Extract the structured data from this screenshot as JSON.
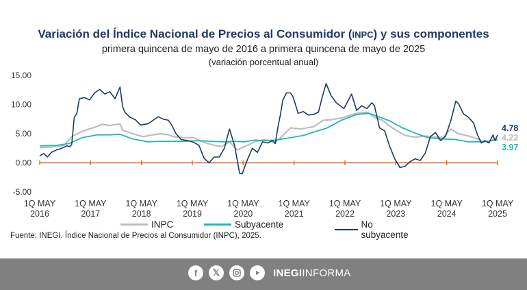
{
  "header": {
    "title_part1": "Variación del Índice Nacional de Precios al Consumidor (",
    "title_inpc": "INPC",
    "title_part2": ") y sus componentes",
    "subtitle": "primera quincena de mayo de 2016 a primera quincena de mayo de 2025",
    "subtitle2": "(variación porcentual anual)"
  },
  "source": "Fuente: INEGI. Índice Nacional de Precios al Consumidor (INPC), 2025.",
  "footer": {
    "icons": [
      "facebook-icon",
      "x-icon",
      "instagram-icon",
      "youtube-icon"
    ],
    "brand_bold": "INEGI",
    "brand_rest": "INFORMA"
  },
  "chart_data": {
    "type": "line",
    "ylim": [
      -5,
      15
    ],
    "yticks": [
      "15.00",
      "10.00",
      "5.00",
      "0.00",
      "-5.00"
    ],
    "ytick_values": [
      15,
      10,
      5,
      0,
      -5
    ],
    "x_labels": [
      [
        "1Q MAY",
        "2016"
      ],
      [
        "1Q MAY",
        "2017"
      ],
      [
        "1Q MAY",
        "2018"
      ],
      [
        "1Q MAY",
        "2019"
      ],
      [
        "1Q MAY",
        "2020"
      ],
      [
        "1Q MAY",
        "2021"
      ],
      [
        "1Q MAY",
        "2022"
      ],
      [
        "1Q MAY",
        "2023"
      ],
      [
        "1Q MAY",
        "2024"
      ],
      [
        "1Q MAY",
        "2025"
      ]
    ],
    "xlim": [
      2016.37,
      2025.37
    ],
    "zero_line_color": "#e0662a",
    "series": [
      {
        "name": "INPC",
        "color": "#bdbdbd",
        "width": 2.2,
        "points": [
          [
            2016.37,
            2.6
          ],
          [
            2016.6,
            2.7
          ],
          [
            2016.85,
            3.0
          ],
          [
            2017.0,
            4.5
          ],
          [
            2017.2,
            5.4
          ],
          [
            2017.45,
            6.1
          ],
          [
            2017.6,
            6.6
          ],
          [
            2017.75,
            6.4
          ],
          [
            2017.95,
            6.7
          ],
          [
            2018.0,
            5.6
          ],
          [
            2018.2,
            5.0
          ],
          [
            2018.4,
            4.5
          ],
          [
            2018.6,
            4.8
          ],
          [
            2018.75,
            5.0
          ],
          [
            2018.9,
            4.8
          ],
          [
            2019.0,
            4.5
          ],
          [
            2019.2,
            4.3
          ],
          [
            2019.4,
            4.3
          ],
          [
            2019.6,
            3.5
          ],
          [
            2019.8,
            3.0
          ],
          [
            2019.95,
            2.8
          ],
          [
            2020.1,
            3.6
          ],
          [
            2020.25,
            2.2
          ],
          [
            2020.4,
            2.8
          ],
          [
            2020.6,
            3.6
          ],
          [
            2020.8,
            4.0
          ],
          [
            2021.0,
            3.5
          ],
          [
            2021.15,
            4.7
          ],
          [
            2021.3,
            6.0
          ],
          [
            2021.5,
            5.8
          ],
          [
            2021.75,
            6.2
          ],
          [
            2021.95,
            7.3
          ],
          [
            2022.1,
            7.4
          ],
          [
            2022.3,
            7.7
          ],
          [
            2022.6,
            8.5
          ],
          [
            2022.8,
            8.7
          ],
          [
            2022.95,
            7.8
          ],
          [
            2023.1,
            7.3
          ],
          [
            2023.3,
            6.0
          ],
          [
            2023.55,
            4.7
          ],
          [
            2023.75,
            4.4
          ],
          [
            2023.95,
            4.6
          ],
          [
            2024.1,
            4.4
          ],
          [
            2024.3,
            4.4
          ],
          [
            2024.45,
            5.8
          ],
          [
            2024.6,
            5.0
          ],
          [
            2024.8,
            4.6
          ],
          [
            2024.95,
            4.2
          ],
          [
            2025.1,
            3.6
          ],
          [
            2025.25,
            3.8
          ],
          [
            2025.37,
            4.22
          ]
        ]
      },
      {
        "name": "Subyacente",
        "color": "#1fb8b4",
        "width": 1.8,
        "points": [
          [
            2016.37,
            2.9
          ],
          [
            2016.7,
            3.0
          ],
          [
            2016.95,
            3.3
          ],
          [
            2017.2,
            4.3
          ],
          [
            2017.5,
            4.8
          ],
          [
            2017.75,
            4.8
          ],
          [
            2017.95,
            4.9
          ],
          [
            2018.2,
            4.1
          ],
          [
            2018.5,
            3.6
          ],
          [
            2018.75,
            3.7
          ],
          [
            2018.95,
            3.7
          ],
          [
            2019.2,
            3.7
          ],
          [
            2019.5,
            3.8
          ],
          [
            2019.75,
            3.7
          ],
          [
            2019.95,
            3.6
          ],
          [
            2020.2,
            3.7
          ],
          [
            2020.4,
            3.6
          ],
          [
            2020.6,
            3.9
          ],
          [
            2020.8,
            3.8
          ],
          [
            2021.0,
            3.9
          ],
          [
            2021.3,
            4.3
          ],
          [
            2021.55,
            4.7
          ],
          [
            2021.8,
            5.4
          ],
          [
            2022.0,
            5.9
          ],
          [
            2022.3,
            7.3
          ],
          [
            2022.6,
            8.3
          ],
          [
            2022.85,
            8.5
          ],
          [
            2023.0,
            8.0
          ],
          [
            2023.25,
            7.2
          ],
          [
            2023.5,
            6.0
          ],
          [
            2023.75,
            5.1
          ],
          [
            2024.0,
            4.3
          ],
          [
            2024.3,
            4.1
          ],
          [
            2024.55,
            4.0
          ],
          [
            2024.8,
            3.6
          ],
          [
            2025.1,
            3.6
          ],
          [
            2025.37,
            3.97
          ]
        ]
      },
      {
        "name": "No subyacente",
        "color": "#1a3a5f",
        "width": 1.6,
        "points": [
          [
            2016.37,
            1.2
          ],
          [
            2016.45,
            1.6
          ],
          [
            2016.52,
            1.0
          ],
          [
            2016.6,
            1.8
          ],
          [
            2016.7,
            2.2
          ],
          [
            2016.8,
            2.5
          ],
          [
            2016.9,
            2.9
          ],
          [
            2016.97,
            2.8
          ],
          [
            2017.0,
            3.2
          ],
          [
            2017.05,
            7.8
          ],
          [
            2017.1,
            8.5
          ],
          [
            2017.15,
            11.0
          ],
          [
            2017.25,
            11.2
          ],
          [
            2017.35,
            10.8
          ],
          [
            2017.45,
            12.0
          ],
          [
            2017.55,
            12.6
          ],
          [
            2017.65,
            11.8
          ],
          [
            2017.75,
            12.2
          ],
          [
            2017.85,
            11.0
          ],
          [
            2017.95,
            13.0
          ],
          [
            2018.0,
            9.6
          ],
          [
            2018.05,
            8.6
          ],
          [
            2018.15,
            7.8
          ],
          [
            2018.25,
            7.4
          ],
          [
            2018.35,
            6.5
          ],
          [
            2018.5,
            6.7
          ],
          [
            2018.6,
            7.3
          ],
          [
            2018.7,
            7.9
          ],
          [
            2018.8,
            7.5
          ],
          [
            2018.9,
            7.3
          ],
          [
            2018.97,
            6.4
          ],
          [
            2019.05,
            5.0
          ],
          [
            2019.15,
            4.0
          ],
          [
            2019.3,
            3.8
          ],
          [
            2019.4,
            3.5
          ],
          [
            2019.5,
            3.0
          ],
          [
            2019.6,
            0.8
          ],
          [
            2019.7,
            0.0
          ],
          [
            2019.8,
            1.0
          ],
          [
            2019.9,
            1.0
          ],
          [
            2020.0,
            2.5
          ],
          [
            2020.1,
            5.8
          ],
          [
            2020.2,
            3.0
          ],
          [
            2020.3,
            -1.8
          ],
          [
            2020.35,
            -1.9
          ],
          [
            2020.45,
            0.5
          ],
          [
            2020.55,
            2.5
          ],
          [
            2020.65,
            1.8
          ],
          [
            2020.75,
            3.6
          ],
          [
            2020.85,
            3.4
          ],
          [
            2020.95,
            3.8
          ],
          [
            2021.0,
            3.3
          ],
          [
            2021.05,
            6.0
          ],
          [
            2021.1,
            8.2
          ],
          [
            2021.15,
            10.8
          ],
          [
            2021.22,
            12.0
          ],
          [
            2021.3,
            12.0
          ],
          [
            2021.35,
            11.3
          ],
          [
            2021.45,
            8.5
          ],
          [
            2021.55,
            8.8
          ],
          [
            2021.65,
            8.2
          ],
          [
            2021.75,
            8.3
          ],
          [
            2021.85,
            8.7
          ],
          [
            2021.93,
            11.5
          ],
          [
            2022.0,
            13.6
          ],
          [
            2022.1,
            11.5
          ],
          [
            2022.2,
            10.3
          ],
          [
            2022.35,
            9.3
          ],
          [
            2022.5,
            11.8
          ],
          [
            2022.6,
            9.0
          ],
          [
            2022.7,
            9.8
          ],
          [
            2022.8,
            9.3
          ],
          [
            2022.9,
            10.3
          ],
          [
            2022.95,
            9.8
          ],
          [
            2023.05,
            6.0
          ],
          [
            2023.15,
            5.5
          ],
          [
            2023.25,
            2.8
          ],
          [
            2023.35,
            0.7
          ],
          [
            2023.45,
            -0.8
          ],
          [
            2023.55,
            -0.6
          ],
          [
            2023.65,
            0.2
          ],
          [
            2023.75,
            0.7
          ],
          [
            2023.85,
            0.4
          ],
          [
            2023.95,
            1.7
          ],
          [
            2024.05,
            4.5
          ],
          [
            2024.15,
            5.2
          ],
          [
            2024.25,
            3.8
          ],
          [
            2024.35,
            4.6
          ],
          [
            2024.45,
            7.2
          ],
          [
            2024.55,
            10.6
          ],
          [
            2024.6,
            10.2
          ],
          [
            2024.7,
            8.4
          ],
          [
            2024.8,
            7.8
          ],
          [
            2024.9,
            6.8
          ],
          [
            2024.97,
            4.9
          ],
          [
            2025.05,
            3.4
          ],
          [
            2025.12,
            3.8
          ],
          [
            2025.2,
            3.4
          ],
          [
            2025.28,
            4.8
          ],
          [
            2025.32,
            3.8
          ],
          [
            2025.37,
            4.78
          ]
        ]
      }
    ],
    "end_labels": [
      {
        "text": "4.78",
        "value": 4.78,
        "color": "#1a3a5f"
      },
      {
        "text": "4.22",
        "value": 4.22,
        "color": "#bdbdbd"
      },
      {
        "text": "3.97",
        "value": 3.97,
        "color": "#1fb8b4"
      }
    ]
  }
}
